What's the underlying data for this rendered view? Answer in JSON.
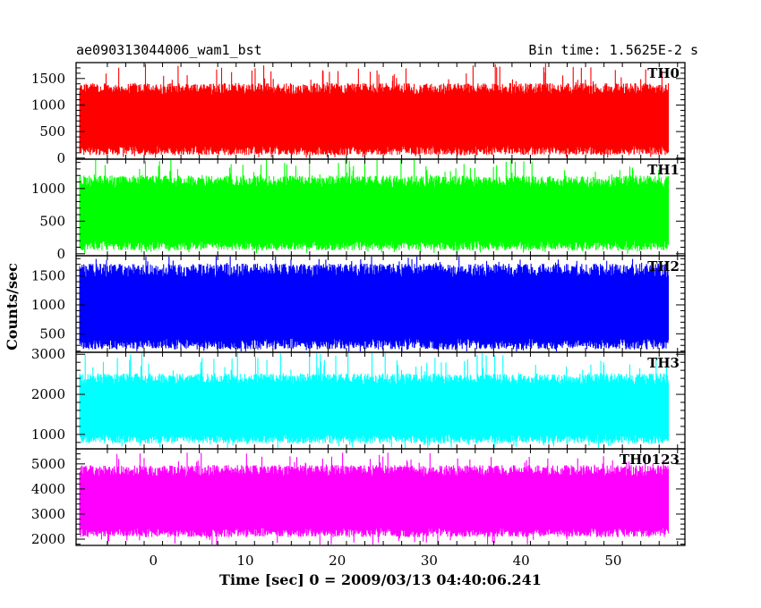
{
  "chart_data": {
    "type": "line",
    "title": "ae090313044006_wam1_bst",
    "subtitle": "Bin time: 1.5625E-2 s",
    "xlabel": "Time [sec] 0 = 2009/03/13 04:40:06.241",
    "ylabel": "Counts/sec",
    "xlim": [
      -8.4,
      57.8
    ],
    "x_ticks": [
      0,
      10,
      20,
      30,
      40,
      50
    ],
    "x_range_data": [
      -8,
      56
    ],
    "grid": false,
    "legend": "none",
    "panels": [
      {
        "name": "TH0",
        "color": "#ff0000",
        "ylim": [
          -20,
          1800
        ],
        "y_ticks": [
          0,
          500,
          1000,
          1500
        ],
        "band": [
          230,
          1200
        ],
        "spike_max": 1800,
        "spike_min": 0
      },
      {
        "name": "TH1",
        "color": "#00ff00",
        "ylim": [
          -30,
          1450
        ],
        "y_ticks": [
          0,
          500,
          1000
        ],
        "band": [
          200,
          1020
        ],
        "spike_max": 1450,
        "spike_min": 0
      },
      {
        "name": "TH2",
        "color": "#0000ff",
        "ylim": [
          180,
          1850
        ],
        "y_ticks": [
          500,
          1000,
          1500
        ],
        "band": [
          420,
          1480
        ],
        "spike_max": 1850,
        "spike_min": 180
      },
      {
        "name": "TH3",
        "color": "#00ffff",
        "ylim": [
          640,
          3050
        ],
        "y_ticks": [
          1000,
          2000,
          3000
        ],
        "band": [
          1000,
          2250
        ],
        "spike_max": 3050,
        "spike_min": 640
      },
      {
        "name": "TH0123",
        "color": "#ff00ff",
        "ylim": [
          1750,
          5600
        ],
        "y_ticks": [
          2000,
          3000,
          4000,
          5000
        ],
        "band": [
          2450,
          4500
        ],
        "spike_max": 5450,
        "spike_min": 1750
      }
    ]
  }
}
